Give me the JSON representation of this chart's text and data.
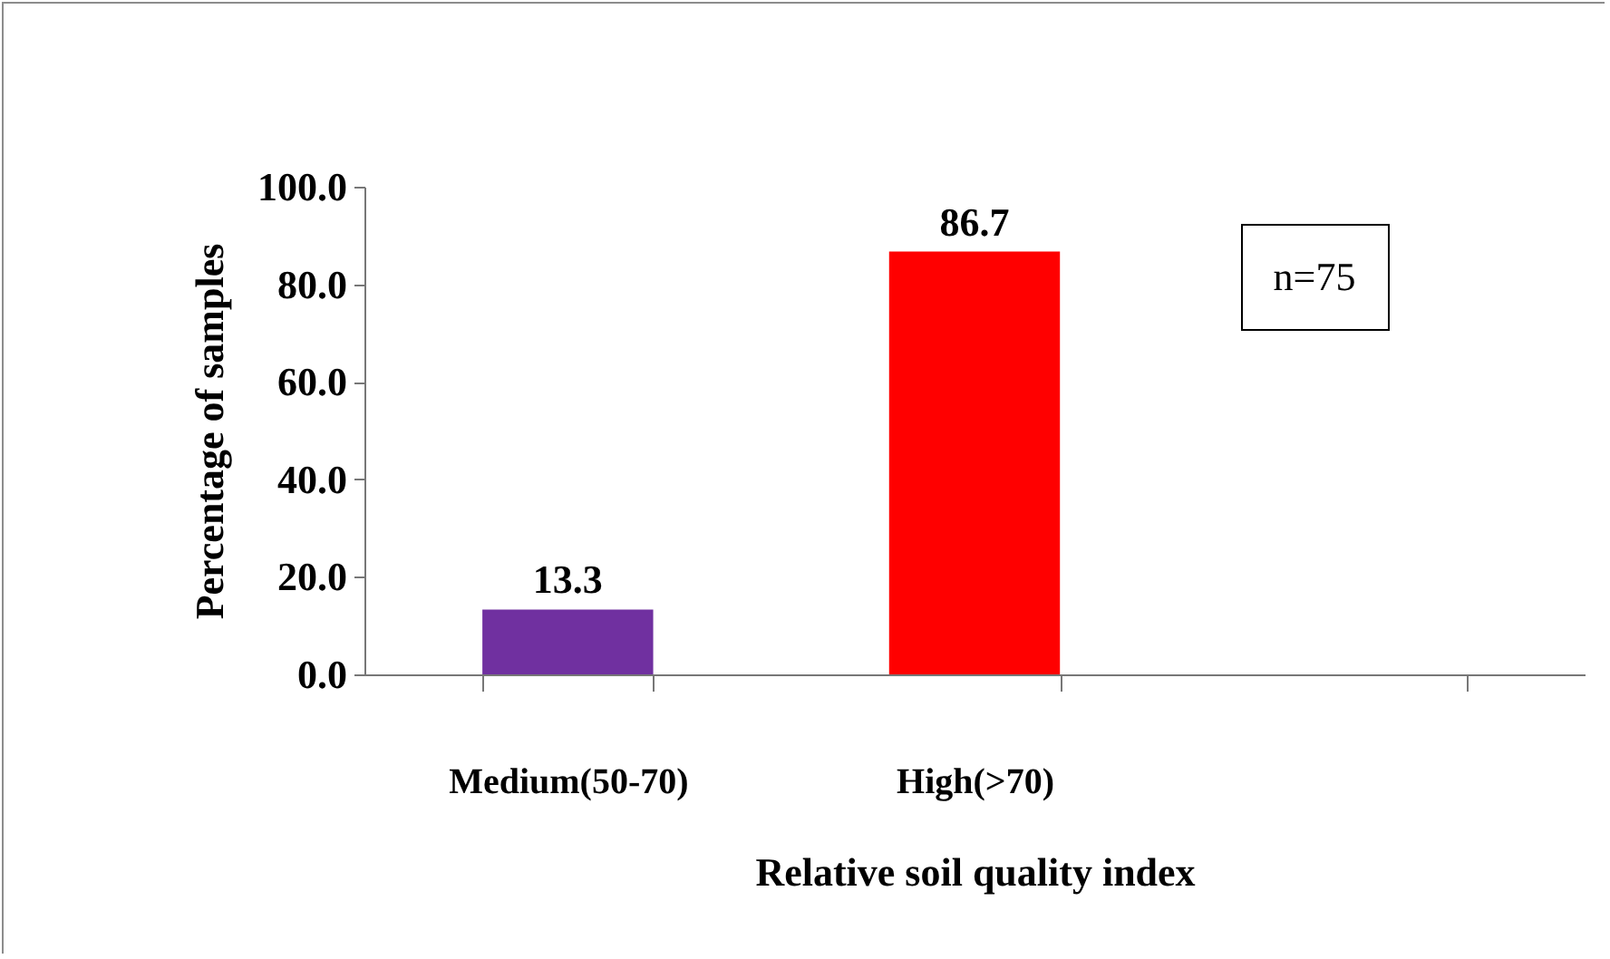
{
  "chart_data": {
    "type": "bar",
    "xlabel": "Relative soil quality index",
    "ylabel": "Percentage of samples",
    "categories": [
      "Medium(50-70)",
      "High(>70)",
      null
    ],
    "values": [
      13.3,
      86.7,
      null
    ],
    "colors": [
      "#7030a0",
      "#ff0000",
      "#000000"
    ],
    "ylim": [
      0,
      100
    ],
    "yticks": [
      {
        "value": 0,
        "label": "0.0"
      },
      {
        "value": 20,
        "label": "20.0"
      },
      {
        "value": 40,
        "label": "40.0"
      },
      {
        "value": 60,
        "label": "60.0"
      },
      {
        "value": 80,
        "label": "80.0"
      },
      {
        "value": 100,
        "label": "100.0"
      }
    ],
    "data_labels": true,
    "annotations": [
      "n=75"
    ]
  }
}
